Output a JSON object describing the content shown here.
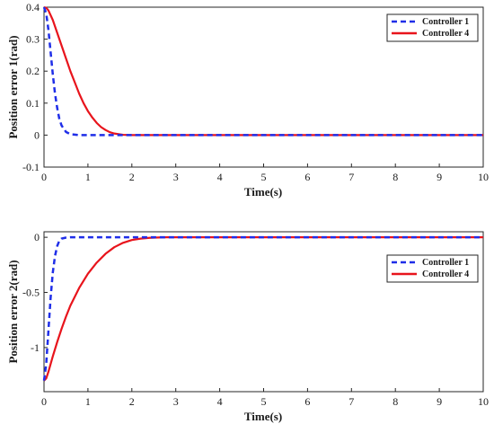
{
  "chart_data": [
    {
      "type": "line",
      "xlabel": "Time(s)",
      "ylabel": "Position error 1(rad)",
      "xlim": [
        0,
        10
      ],
      "ylim": [
        -0.1,
        0.4
      ],
      "xticks": [
        "0",
        "1",
        "2",
        "3",
        "4",
        "5",
        "6",
        "7",
        "8",
        "9",
        "10"
      ],
      "yticks": [
        "-0.1",
        "0",
        "0.1",
        "0.2",
        "0.3",
        "0.4"
      ],
      "grid": false,
      "legend": "top-right",
      "series": [
        {
          "name": "Controller 1",
          "color": "#1f2ee8",
          "dash": "dashed",
          "x": [
            0,
            0.05,
            0.1,
            0.15,
            0.2,
            0.25,
            0.3,
            0.35,
            0.4,
            0.5,
            0.6,
            0.8,
            1,
            1.5,
            2,
            3,
            4,
            5,
            6,
            7,
            8,
            9,
            10
          ],
          "y": [
            0.4,
            0.38,
            0.33,
            0.26,
            0.19,
            0.13,
            0.085,
            0.05,
            0.03,
            0.01,
            0.003,
            0,
            0,
            0,
            0,
            0,
            0,
            0,
            0,
            0,
            0,
            0,
            0
          ]
        },
        {
          "name": "Controller 4",
          "color": "#e8141c",
          "dash": "solid",
          "x": [
            0,
            0.05,
            0.1,
            0.2,
            0.3,
            0.4,
            0.5,
            0.6,
            0.7,
            0.8,
            0.9,
            1,
            1.1,
            1.2,
            1.3,
            1.4,
            1.5,
            1.6,
            1.8,
            2,
            2.5,
            3,
            4,
            5,
            6,
            7,
            8,
            9,
            10
          ],
          "y": [
            0.4,
            0.398,
            0.39,
            0.36,
            0.32,
            0.28,
            0.24,
            0.2,
            0.165,
            0.13,
            0.1,
            0.075,
            0.055,
            0.038,
            0.025,
            0.016,
            0.009,
            0.005,
            0.001,
            0,
            0,
            0,
            0,
            0,
            0,
            0,
            0,
            0,
            0
          ]
        }
      ]
    },
    {
      "type": "line",
      "xlabel": "Time(s)",
      "ylabel": "Position error 2(rad)",
      "xlim": [
        0,
        10
      ],
      "ylim": [
        -1.4,
        0.05
      ],
      "xticks": [
        "0",
        "1",
        "2",
        "3",
        "4",
        "5",
        "6",
        "7",
        "8",
        "9",
        "10"
      ],
      "yticks": [
        "-1",
        "-0.5",
        "0"
      ],
      "grid": false,
      "legend": "top-right",
      "series": [
        {
          "name": "Controller 1",
          "color": "#1f2ee8",
          "dash": "dashed",
          "x": [
            0,
            0.05,
            0.1,
            0.15,
            0.2,
            0.25,
            0.3,
            0.35,
            0.4,
            0.5,
            0.6,
            0.8,
            1,
            1.5,
            2,
            3,
            4,
            5,
            6,
            7,
            8,
            9,
            10
          ],
          "y": [
            -1.3,
            -1.15,
            -0.85,
            -0.55,
            -0.32,
            -0.17,
            -0.08,
            -0.03,
            -0.012,
            -0.003,
            0,
            0,
            0,
            0,
            0,
            0,
            0,
            0,
            0,
            0,
            0,
            0,
            0
          ]
        },
        {
          "name": "Controller 4",
          "color": "#e8141c",
          "dash": "solid",
          "x": [
            0,
            0.05,
            0.1,
            0.2,
            0.3,
            0.4,
            0.5,
            0.6,
            0.8,
            1,
            1.2,
            1.4,
            1.6,
            1.8,
            2,
            2.2,
            2.4,
            2.6,
            2.8,
            3,
            4,
            5,
            6,
            7,
            8,
            9,
            10
          ],
          "y": [
            -1.3,
            -1.28,
            -1.22,
            -1.08,
            -0.95,
            -0.83,
            -0.72,
            -0.62,
            -0.46,
            -0.33,
            -0.23,
            -0.15,
            -0.09,
            -0.05,
            -0.025,
            -0.012,
            -0.005,
            -0.002,
            0,
            0,
            0,
            0,
            0,
            0,
            0,
            0,
            0
          ]
        }
      ]
    }
  ]
}
